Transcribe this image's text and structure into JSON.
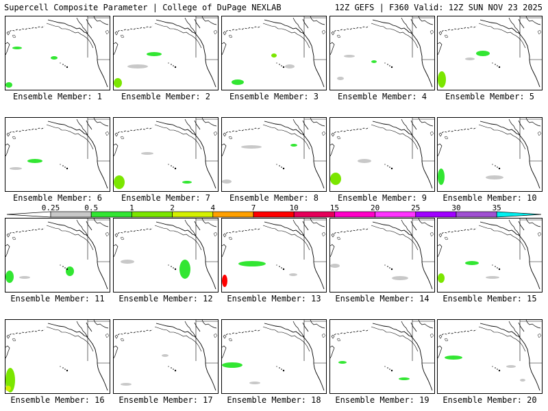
{
  "header": {
    "left": "Supercell Composite Parameter | College of DuPage NEXLAB",
    "right": "12Z GEFS | F360 Valid: 12Z SUN NOV 23 2025"
  },
  "members": [
    "Ensemble Member: 1",
    "Ensemble Member: 2",
    "Ensemble Member: 3",
    "Ensemble Member: 4",
    "Ensemble Member: 5",
    "Ensemble Member: 6",
    "Ensemble Member: 7",
    "Ensemble Member: 8",
    "Ensemble Member: 9",
    "Ensemble Member: 10",
    "Ensemble Member: 11",
    "Ensemble Member: 12",
    "Ensemble Member: 13",
    "Ensemble Member: 14",
    "Ensemble Member: 15",
    "Ensemble Member: 16",
    "Ensemble Member: 17",
    "Ensemble Member: 18",
    "Ensemble Member: 19",
    "Ensemble Member: 20"
  ],
  "colorbar": {
    "labels": [
      "0.25",
      "0.5",
      "1",
      "2",
      "4",
      "7",
      "10",
      "15",
      "20",
      "25",
      "30",
      "35"
    ],
    "colors": [
      "#c8c8c8",
      "#32e632",
      "#7be600",
      "#d4f000",
      "#ffa000",
      "#ff0000",
      "#e6005a",
      "#ff00c8",
      "#ff32ff",
      "#a000ff",
      "#a050d2",
      "#00f0f0"
    ]
  }
}
